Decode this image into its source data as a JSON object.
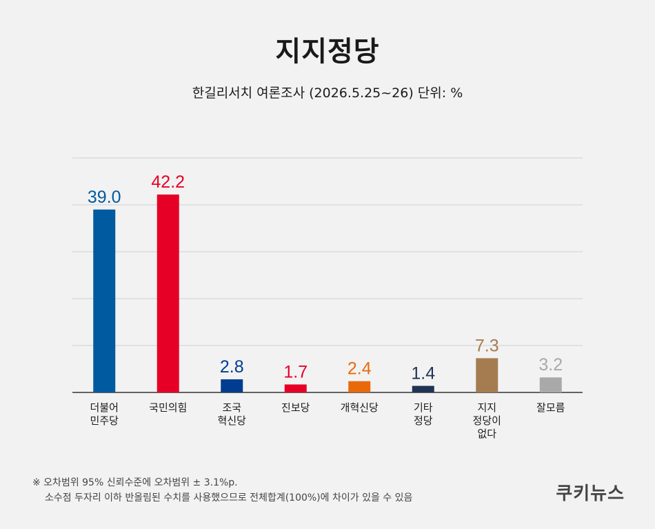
{
  "title": "지지정당",
  "subtitle": "한길리서치 여론조사 (2026.5.25~26) 단위: %",
  "footnote": {
    "line1": "※ 오차범위 95% 신뢰수준에 오차범위 ± 3.1%p.",
    "line2": "소수점 두자리 이하 반올림된 수치를 사용했으므로 전체합계(100%)에 차이가 있을 수 있음"
  },
  "brand": "쿠키뉴스",
  "chart_data": {
    "type": "bar",
    "categories": [
      [
        "더불어",
        "민주당"
      ],
      [
        "국민의힘"
      ],
      [
        "조국",
        "혁신당"
      ],
      [
        "진보당"
      ],
      [
        "개혁신당"
      ],
      [
        "기타",
        "정당"
      ],
      [
        "지지",
        "정당이",
        "없다"
      ],
      [
        "잘모름"
      ]
    ],
    "values": [
      39.0,
      42.2,
      2.8,
      1.7,
      2.4,
      1.4,
      7.3,
      3.2
    ],
    "value_labels": [
      "39.0",
      "42.2",
      "2.8",
      "1.7",
      "2.4",
      "1.4",
      "7.3",
      "3.2"
    ],
    "colors": [
      "#005aa0",
      "#e60026",
      "#003c8f",
      "#e60026",
      "#e8690b",
      "#1f3354",
      "#a57c50",
      "#a9a9a9"
    ],
    "label_colors": [
      "#005aa0",
      "#e60026",
      "#003c8f",
      "#e60026",
      "#e8690b",
      "#1f3354",
      "#a57c50",
      "#a9a9a9"
    ],
    "ylim": [
      0,
      50
    ],
    "grid": true
  }
}
